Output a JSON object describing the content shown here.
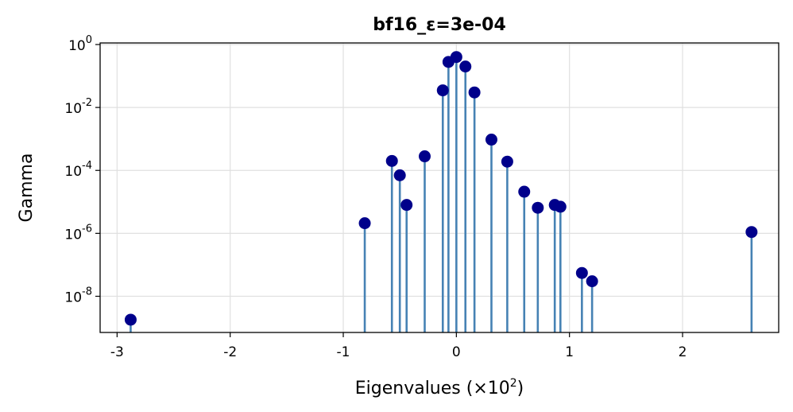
{
  "chart_data": {
    "type": "stem",
    "title": "bf16_ε=3e-04",
    "xlabel": "Eigenvalues (×10²)",
    "xlabel_parts": {
      "base": "Eigenvalues (×10",
      "exp": "2",
      "close": ")"
    },
    "ylabel": "Gamma",
    "y_scale": "log",
    "xlim": [
      -3.15,
      2.85
    ],
    "ylim_exponent": [
      -9.15,
      0.05
    ],
    "grid": true,
    "stem_color": "#4682b4",
    "marker_color": "#00008b",
    "x_ticks": [
      {
        "value": -3,
        "label": "-3"
      },
      {
        "value": -2,
        "label": "-2"
      },
      {
        "value": -1,
        "label": "-1"
      },
      {
        "value": 0,
        "label": "0"
      },
      {
        "value": 1,
        "label": "1"
      },
      {
        "value": 2,
        "label": "2"
      }
    ],
    "y_ticks": [
      {
        "exponent": 0,
        "base": "10",
        "exp": "0"
      },
      {
        "exponent": -2,
        "base": "10",
        "exp": "-2"
      },
      {
        "exponent": -4,
        "base": "10",
        "exp": "-4"
      },
      {
        "exponent": -6,
        "base": "10",
        "exp": "-6"
      },
      {
        "exponent": -8,
        "base": "10",
        "exp": "-8"
      }
    ],
    "points": [
      {
        "x": -2.88,
        "y": 1.8e-09
      },
      {
        "x": -0.81,
        "y": 2.1e-06
      },
      {
        "x": -0.57,
        "y": 0.0002
      },
      {
        "x": -0.5,
        "y": 7e-05
      },
      {
        "x": -0.44,
        "y": 8e-06
      },
      {
        "x": -0.28,
        "y": 0.00028
      },
      {
        "x": -0.12,
        "y": 0.035
      },
      {
        "x": -0.07,
        "y": 0.28
      },
      {
        "x": 0.0,
        "y": 0.4
      },
      {
        "x": 0.08,
        "y": 0.2
      },
      {
        "x": 0.16,
        "y": 0.03
      },
      {
        "x": 0.31,
        "y": 0.00095
      },
      {
        "x": 0.45,
        "y": 0.00019
      },
      {
        "x": 0.6,
        "y": 2.1e-05
      },
      {
        "x": 0.72,
        "y": 6.5e-06
      },
      {
        "x": 0.87,
        "y": 8e-06
      },
      {
        "x": 0.92,
        "y": 7e-06
      },
      {
        "x": 1.11,
        "y": 5.5e-08
      },
      {
        "x": 1.2,
        "y": 3e-08
      },
      {
        "x": 2.61,
        "y": 1.1e-06
      }
    ]
  }
}
